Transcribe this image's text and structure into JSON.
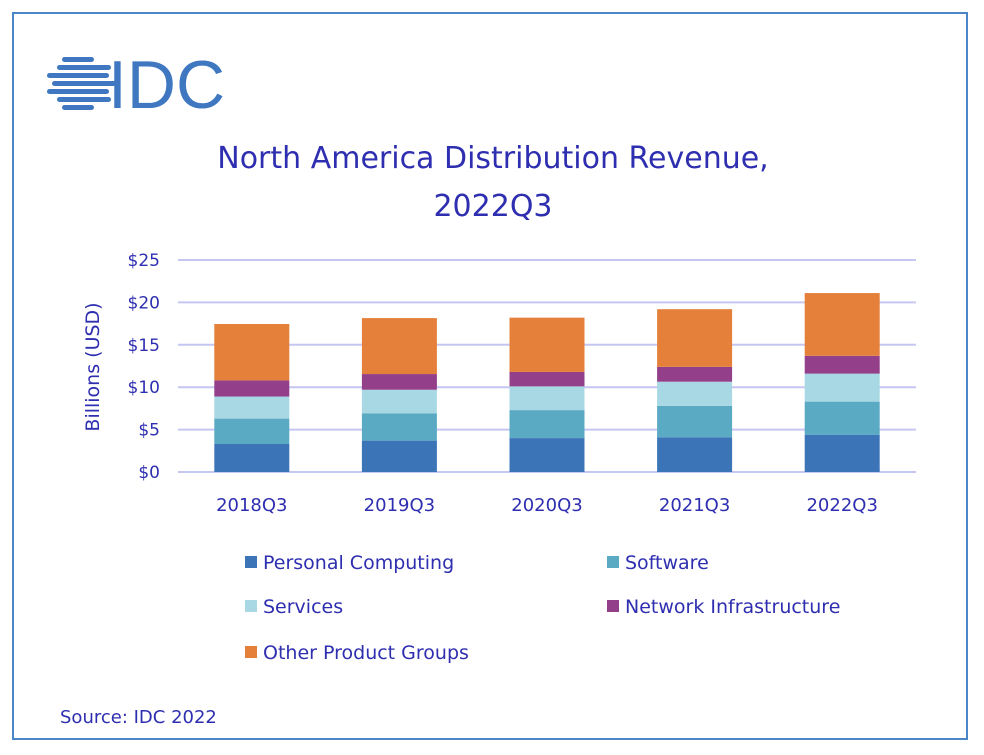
{
  "logo": {
    "text": "IDC",
    "color": "#3f78c0"
  },
  "source": "Source: IDC 2022",
  "chart_data": {
    "type": "bar",
    "stacked": true,
    "title": "North America Distribution Revenue, 2022Q3",
    "title_lines": [
      "North America Distribution Revenue,",
      "2022Q3"
    ],
    "xlabel": "",
    "ylabel": "Billions (USD)",
    "ylim": [
      0,
      25
    ],
    "yticks": [
      0,
      5,
      10,
      15,
      20,
      25
    ],
    "ytick_labels": [
      "$0",
      "$5",
      "$10",
      "$15",
      "$20",
      "$25"
    ],
    "grid": true,
    "legend_placement": "bottom",
    "categories": [
      "2018Q3",
      "2019Q3",
      "2020Q3",
      "2021Q3",
      "2022Q3"
    ],
    "series": [
      {
        "name": "Personal Computing",
        "color": "#3c74b8",
        "values": [
          3.3,
          3.7,
          4.0,
          4.1,
          4.4
        ]
      },
      {
        "name": "Software",
        "color": "#5aaac4",
        "values": [
          3.0,
          3.2,
          3.3,
          3.7,
          3.9
        ]
      },
      {
        "name": "Services",
        "color": "#a8d8e4",
        "values": [
          2.6,
          2.8,
          2.8,
          2.85,
          3.3
        ]
      },
      {
        "name": "Network Infrastructure",
        "color": "#933f8a",
        "values": [
          1.9,
          1.85,
          1.7,
          1.75,
          2.1
        ]
      },
      {
        "name": "Other Product Groups",
        "color": "#e4803a",
        "values": [
          6.65,
          6.6,
          6.4,
          6.8,
          7.4
        ]
      }
    ]
  }
}
